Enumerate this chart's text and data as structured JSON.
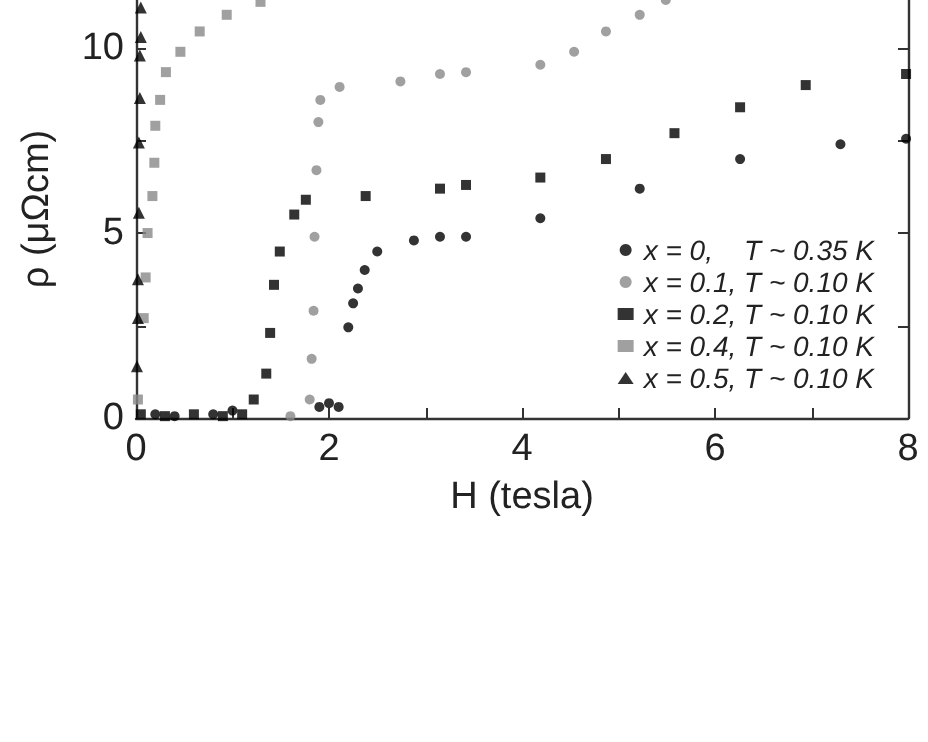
{
  "chart_data": {
    "type": "scatter",
    "xlabel": "H (tesla)",
    "ylabel": "ρ (μΩcm)",
    "xlim": [
      0,
      8
    ],
    "xticks": [
      0,
      {
        "value": 1,
        "label": null
      },
      2,
      {
        "value": 3,
        "label": null
      },
      4,
      {
        "value": 5,
        "label": null
      },
      6,
      {
        "value": 7,
        "label": null
      },
      8
    ],
    "ylim": [
      0,
      11.3
    ],
    "yticks": [
      0,
      {
        "value": 2.5,
        "label": null
      },
      5,
      {
        "value": 7.5,
        "label": null
      },
      10
    ],
    "grid": false,
    "legend": "bottom right",
    "series": [
      {
        "name": "x = 0,    T ~ 0.35 K",
        "color": "#000000",
        "marker": "circle",
        "x": [
          0.2,
          0.4,
          0.8,
          1.0,
          1.9,
          2.0,
          2.1,
          2.2,
          2.25,
          2.3,
          2.37,
          2.5,
          2.88,
          3.15,
          3.42,
          4.19,
          5.22,
          6.26,
          7.3,
          7.98
        ],
        "values": [
          0.1,
          0.05,
          0.1,
          0.2,
          0.3,
          0.4,
          0.3,
          2.45,
          3.1,
          3.5,
          4.0,
          4.5,
          4.8,
          4.9,
          4.9,
          5.4,
          6.2,
          7.0,
          7.4,
          7.55
        ]
      },
      {
        "name": "x = 0.1, T ~ 0.10 K",
        "color": "#888888",
        "marker": "circle",
        "x": [
          1.6,
          1.8,
          1.82,
          1.84,
          1.85,
          1.87,
          1.89,
          1.91,
          2.11,
          2.74,
          3.15,
          3.42,
          4.19,
          4.54,
          4.87,
          5.22,
          5.49
        ],
        "values": [
          0.05,
          0.5,
          1.6,
          2.9,
          4.9,
          6.7,
          8.0,
          8.6,
          8.95,
          9.1,
          9.3,
          9.35,
          9.55,
          9.9,
          10.45,
          10.9,
          11.3
        ]
      },
      {
        "name": "x = 0.2, T ~ 0.10 K",
        "color": "#000000",
        "marker": "square",
        "x": [
          0.05,
          0.3,
          0.6,
          0.9,
          1.1,
          1.22,
          1.35,
          1.39,
          1.43,
          1.49,
          1.64,
          1.76,
          2.38,
          3.15,
          3.42,
          4.19,
          4.87,
          5.58,
          6.26,
          6.94,
          7.98
        ],
        "values": [
          0.1,
          0.05,
          0.1,
          0.05,
          0.1,
          0.5,
          1.2,
          2.3,
          3.6,
          4.5,
          5.5,
          5.9,
          6.0,
          6.2,
          6.3,
          6.5,
          7.0,
          7.7,
          8.4,
          9.0,
          9.3
        ]
      },
      {
        "name": "x = 0.4, T ~ 0.10 K",
        "color": "#888888",
        "marker": "square",
        "x": [
          0.02,
          0.08,
          0.1,
          0.12,
          0.17,
          0.19,
          0.2,
          0.25,
          0.31,
          0.46,
          0.66,
          0.94,
          1.29
        ],
        "values": [
          0.5,
          2.7,
          3.8,
          5.0,
          6.0,
          6.9,
          7.9,
          8.6,
          9.35,
          9.9,
          10.45,
          10.9,
          11.25
        ]
      },
      {
        "name": "x = 0.5, T ~ 0.10 K",
        "color": "#000000",
        "marker": "triangle",
        "x": [
          0.01,
          0.02,
          0.02,
          0.03,
          0.03,
          0.04,
          0.04,
          0.05,
          0.05
        ],
        "values": [
          1.4,
          2.7,
          3.75,
          5.55,
          7.45,
          8.65,
          9.8,
          10.3,
          11.1
        ]
      }
    ]
  }
}
